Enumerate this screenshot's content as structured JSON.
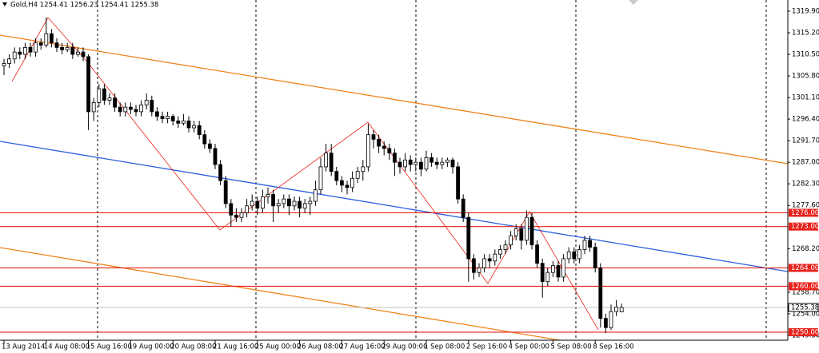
{
  "chart_data": {
    "type": "candlestick",
    "title": "Gold,H4  1254.41 1256.23 1254.41 1255.38",
    "categories": [
      "13 Aug 2014",
      null,
      null,
      null,
      null,
      null,
      null,
      null,
      "14 Aug 08:00",
      null,
      null,
      null,
      null,
      null,
      null,
      null,
      "15 Aug 16:00",
      null,
      null,
      null,
      null,
      null,
      null,
      null,
      "19 Aug 00:00",
      null,
      null,
      null,
      null,
      null,
      null,
      null,
      "20 Aug 08:00",
      null,
      null,
      null,
      null,
      null,
      null,
      null,
      "21 Aug 16:00",
      null,
      null,
      null,
      null,
      null,
      null,
      null,
      "25 Aug 00:00",
      null,
      null,
      null,
      null,
      null,
      null,
      null,
      "26 Aug 08:00",
      null,
      null,
      null,
      null,
      null,
      null,
      null,
      "27 Aug 16:00",
      null,
      null,
      null,
      null,
      null,
      null,
      null,
      "29 Aug 00:00",
      null,
      null,
      null,
      null,
      null,
      null,
      null,
      "1 Sep 08:00",
      null,
      null,
      null,
      null,
      null,
      null,
      null,
      "2 Sep 16:00",
      null,
      null,
      null,
      null,
      null,
      null,
      null,
      "4 Sep 00:00",
      null,
      null,
      null,
      null,
      null,
      null,
      null,
      "5 Sep 08:00",
      null,
      null,
      null,
      null,
      null,
      null,
      null,
      "8 Sep 16:00",
      null,
      null,
      null,
      null,
      null
    ],
    "ohlc": [
      [
        1308,
        1309.5,
        1306,
        1308.5
      ],
      [
        1308.5,
        1310.5,
        1307.5,
        1309.5
      ],
      [
        1309.5,
        1312,
        1308.5,
        1311
      ],
      [
        1311,
        1312,
        1309.5,
        1310.5
      ],
      [
        1310.5,
        1313,
        1309.5,
        1312
      ],
      [
        1312,
        1313,
        1310,
        1311
      ],
      [
        1311,
        1314,
        1310,
        1313
      ],
      [
        1313,
        1314,
        1311.5,
        1312.5
      ],
      [
        1312.5,
        1318.5,
        1312,
        1315
      ],
      [
        1315,
        1316,
        1312,
        1313
      ],
      [
        1313,
        1314,
        1311,
        1312
      ],
      [
        1312,
        1313,
        1310.5,
        1311.5
      ],
      [
        1311.5,
        1313,
        1311,
        1312
      ],
      [
        1312,
        1313,
        1309.5,
        1310.5
      ],
      [
        1310.5,
        1312,
        1310,
        1311
      ],
      [
        1311,
        1312,
        1309,
        1310
      ],
      [
        1310,
        1310.5,
        1294,
        1298
      ],
      [
        1298,
        1301,
        1296,
        1300
      ],
      [
        1300,
        1304,
        1299,
        1303
      ],
      [
        1303,
        1304,
        1299.5,
        1300.5
      ],
      [
        1300.5,
        1302,
        1299.5,
        1301
      ],
      [
        1301,
        1302,
        1298,
        1299
      ],
      [
        1299,
        1300,
        1297,
        1298
      ],
      [
        1298,
        1300,
        1297,
        1299
      ],
      [
        1299,
        1300,
        1297.5,
        1298.5
      ],
      [
        1298.5,
        1299.5,
        1297,
        1298
      ],
      [
        1298,
        1300.5,
        1297,
        1299.5
      ],
      [
        1299.5,
        1302,
        1298.5,
        1300.5
      ],
      [
        1300.5,
        1301.5,
        1297,
        1298
      ],
      [
        1298,
        1299,
        1296,
        1297
      ],
      [
        1297,
        1298,
        1295.5,
        1296.5
      ],
      [
        1296.5,
        1298,
        1295.5,
        1297
      ],
      [
        1297,
        1297.5,
        1295,
        1296
      ],
      [
        1296,
        1297,
        1294.5,
        1295.5
      ],
      [
        1295.5,
        1297.5,
        1295,
        1296
      ],
      [
        1296,
        1297,
        1293.5,
        1294.5
      ],
      [
        1294.5,
        1296,
        1293.5,
        1295
      ],
      [
        1295,
        1296,
        1292,
        1293
      ],
      [
        1293,
        1294,
        1290,
        1291
      ],
      [
        1291,
        1292,
        1289,
        1290
      ],
      [
        1290,
        1291,
        1285.5,
        1286.5
      ],
      [
        1286.5,
        1287.5,
        1282,
        1283
      ],
      [
        1283,
        1284,
        1277,
        1278
      ],
      [
        1278,
        1279,
        1273,
        1275.5
      ],
      [
        1275.5,
        1277,
        1274,
        1275
      ],
      [
        1275,
        1277,
        1274,
        1276
      ],
      [
        1276,
        1279,
        1275,
        1277.5
      ],
      [
        1277.5,
        1280,
        1276.5,
        1278.5
      ],
      [
        1278.5,
        1279.5,
        1275.5,
        1277
      ],
      [
        1277,
        1281,
        1276,
        1279.5
      ],
      [
        1279.5,
        1281.5,
        1278,
        1280
      ],
      [
        1280,
        1281,
        1274,
        1277.5
      ],
      [
        1277.5,
        1279,
        1276,
        1278
      ],
      [
        1278,
        1280,
        1277,
        1279
      ],
      [
        1279,
        1280,
        1275.5,
        1277.5
      ],
      [
        1277.5,
        1279.5,
        1276.5,
        1278.5
      ],
      [
        1278.5,
        1279.5,
        1275,
        1277
      ],
      [
        1277,
        1279,
        1276,
        1278
      ],
      [
        1278,
        1279.5,
        1275.5,
        1278.5
      ],
      [
        1278.5,
        1283,
        1277.5,
        1281
      ],
      [
        1281,
        1288,
        1280,
        1286
      ],
      [
        1286,
        1291,
        1285,
        1289
      ],
      [
        1289,
        1291,
        1284,
        1285
      ],
      [
        1285,
        1286,
        1282,
        1283
      ],
      [
        1283,
        1284,
        1280.5,
        1282
      ],
      [
        1282,
        1283,
        1280,
        1281.5
      ],
      [
        1281.5,
        1285,
        1280.5,
        1283.5
      ],
      [
        1283.5,
        1286,
        1282.5,
        1285
      ],
      [
        1285,
        1287.5,
        1283,
        1286
      ],
      [
        1286,
        1295.4,
        1285,
        1293
      ],
      [
        1293,
        1294,
        1290,
        1292
      ],
      [
        1292,
        1293,
        1289,
        1290.5
      ],
      [
        1290.5,
        1291.5,
        1288.5,
        1290
      ],
      [
        1290,
        1291,
        1287.5,
        1289
      ],
      [
        1289,
        1290,
        1284,
        1287
      ],
      [
        1287,
        1288,
        1284.5,
        1286
      ],
      [
        1286,
        1289,
        1285,
        1287.5
      ],
      [
        1287.5,
        1288.5,
        1285,
        1286.5
      ],
      [
        1286.5,
        1288,
        1285,
        1287
      ],
      [
        1287,
        1288,
        1284,
        1285.5
      ],
      [
        1285.5,
        1289.5,
        1285,
        1288
      ],
      [
        1288,
        1289,
        1286,
        1287
      ],
      [
        1287,
        1288,
        1285.5,
        1286.5
      ],
      [
        1286.5,
        1288,
        1285.5,
        1287
      ],
      [
        1287,
        1288,
        1286,
        1287.5
      ],
      [
        1287.5,
        1288,
        1284.5,
        1286
      ],
      [
        1286,
        1287,
        1278,
        1279
      ],
      [
        1279,
        1280,
        1274,
        1275
      ],
      [
        1275,
        1276,
        1261,
        1266
      ],
      [
        1266,
        1267,
        1261.5,
        1263
      ],
      [
        1263,
        1265,
        1262,
        1264
      ],
      [
        1264,
        1267,
        1263,
        1266
      ],
      [
        1266,
        1267,
        1264,
        1265.5
      ],
      [
        1265.5,
        1268,
        1264.5,
        1267
      ],
      [
        1267,
        1269,
        1266,
        1268
      ],
      [
        1268,
        1270,
        1267,
        1269
      ],
      [
        1269,
        1272,
        1268,
        1271
      ],
      [
        1271,
        1273.5,
        1270,
        1272.5
      ],
      [
        1272.5,
        1273.5,
        1268,
        1270
      ],
      [
        1270,
        1276.5,
        1269,
        1275
      ],
      [
        1275,
        1276,
        1268,
        1269
      ],
      [
        1269,
        1270,
        1264,
        1265
      ],
      [
        1265,
        1266,
        1257.5,
        1261
      ],
      [
        1261,
        1264,
        1260,
        1263
      ],
      [
        1263,
        1265.5,
        1262,
        1264.5
      ],
      [
        1264.5,
        1265.5,
        1261,
        1262
      ],
      [
        1262,
        1267,
        1261,
        1266
      ],
      [
        1266,
        1268.5,
        1265,
        1267.5
      ],
      [
        1267.5,
        1268.5,
        1265,
        1266
      ],
      [
        1266,
        1269,
        1265,
        1268
      ],
      [
        1268,
        1271,
        1267,
        1270
      ],
      [
        1270,
        1271,
        1267.5,
        1268.5
      ],
      [
        1268.5,
        1269.5,
        1263,
        1264
      ],
      [
        1264,
        1265,
        1251,
        1253
      ],
      [
        1253,
        1254,
        1249.8,
        1251
      ],
      [
        1251,
        1256,
        1250.5,
        1254.5
      ],
      [
        1254.5,
        1257,
        1253.5,
        1255.5
      ],
      [
        1254.41,
        1256.23,
        1254.41,
        1255.38
      ]
    ],
    "ylim": [
      1248.25,
      1322.33
    ],
    "yticks": [
      {
        "value": 1319.9,
        "label": "1319.90"
      },
      {
        "value": 1315.2,
        "label": "1315.20"
      },
      {
        "value": 1310.5,
        "label": "1310.50"
      },
      {
        "value": 1305.8,
        "label": "1305.80"
      },
      {
        "value": 1301.1,
        "label": "1301.10"
      },
      {
        "value": 1296.4,
        "label": "1296.40"
      },
      {
        "value": 1291.7,
        "label": "1291.70"
      },
      {
        "value": 1287,
        "label": "1287.00"
      },
      {
        "value": 1282.3,
        "label": "1282.30"
      },
      {
        "value": 1277.6,
        "label": "1277.60"
      },
      {
        "value": 1268.2,
        "label": "1268.20"
      },
      {
        "value": 1258.7,
        "label": "1258.70"
      },
      {
        "value": 1254,
        "label": "1254.00"
      },
      {
        "value": 1249.3,
        "label": "1249.30"
      }
    ],
    "levels": [
      {
        "value": 1276,
        "label": "1276.00"
      },
      {
        "value": 1273,
        "label": "1273.00"
      },
      {
        "value": 1264,
        "label": "1264.00"
      },
      {
        "value": 1260,
        "label": "1260.00"
      },
      {
        "value": 1250,
        "label": "1250.00"
      }
    ],
    "last_price": {
      "value": 1255.38,
      "label": "1255.38"
    },
    "level_color": "#e8211a",
    "up_color": "#ffffff",
    "down_color": "#000000"
  }
}
